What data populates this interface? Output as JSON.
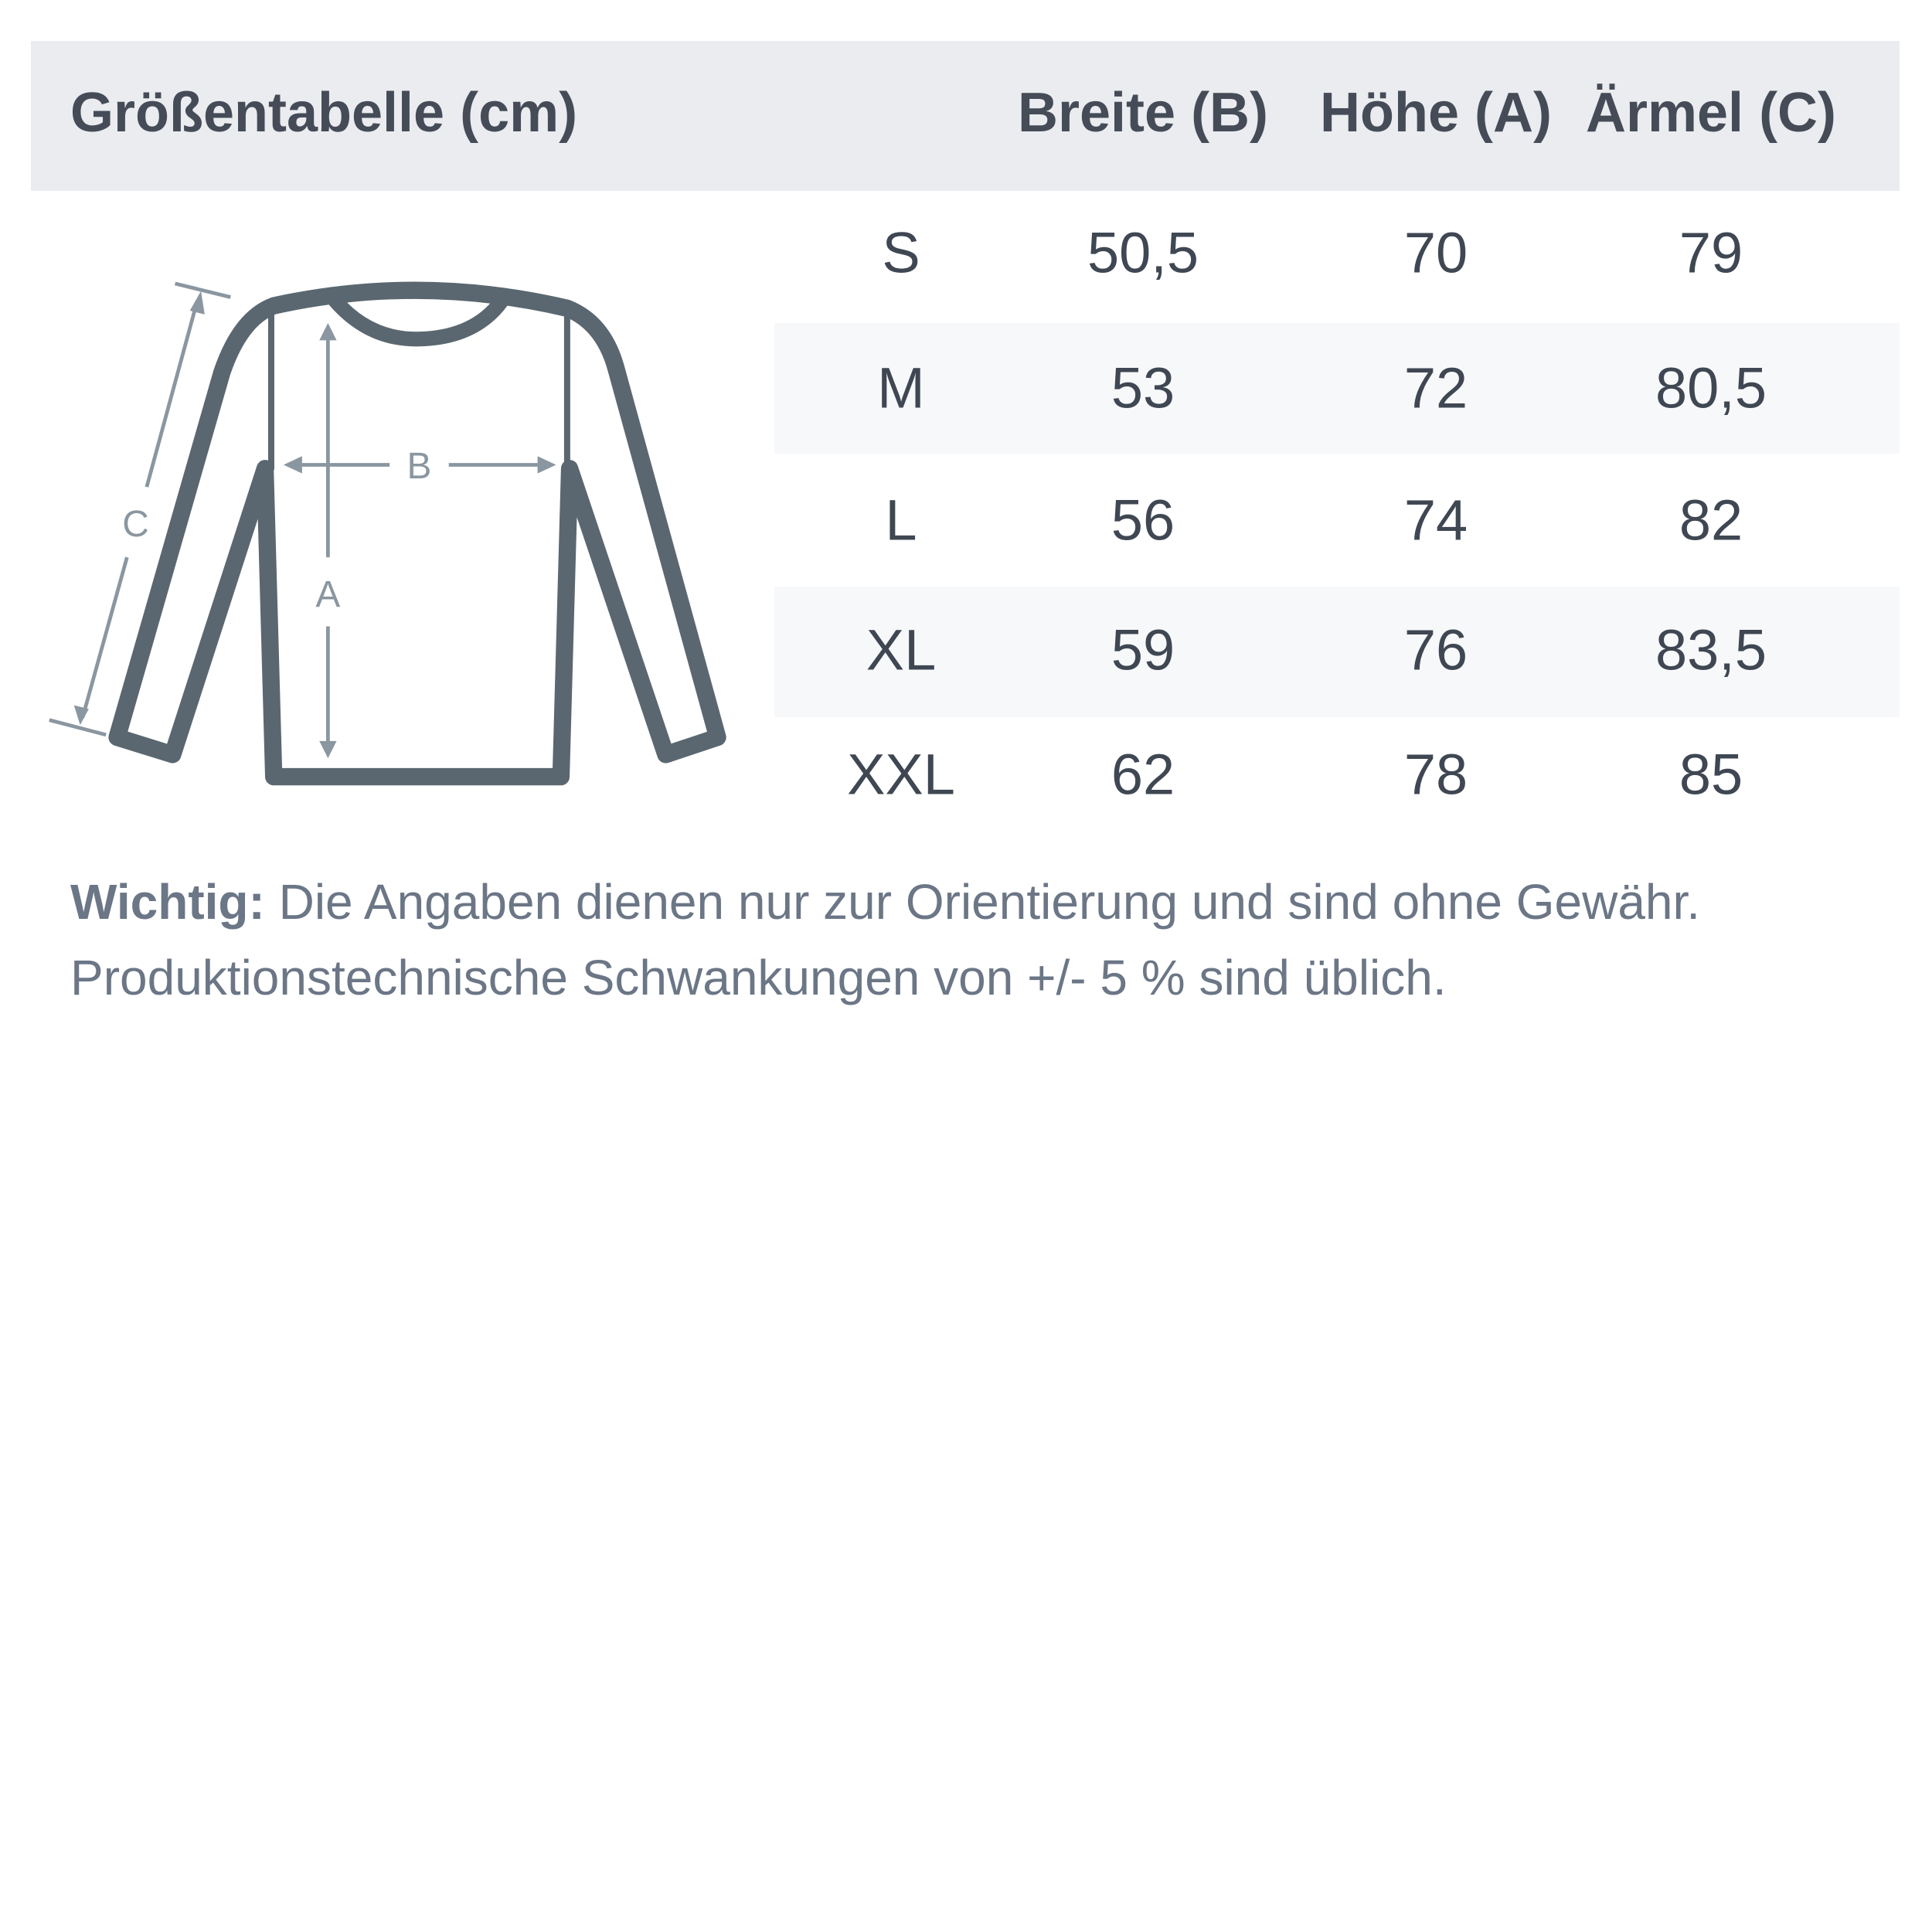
{
  "title": "Größentabelle (cm)",
  "columns": [
    "Breite (B)",
    "Höhe (A)",
    "Ärmel (C)"
  ],
  "rows": [
    {
      "size": "S",
      "values": [
        "50,5",
        "70",
        "79"
      ]
    },
    {
      "size": "M",
      "values": [
        "53",
        "72",
        "80,5"
      ]
    },
    {
      "size": "L",
      "values": [
        "56",
        "74",
        "82"
      ]
    },
    {
      "size": "XL",
      "values": [
        "59",
        "76",
        "83,5"
      ]
    },
    {
      "size": "XXL",
      "values": [
        "62",
        "78",
        "85"
      ]
    }
  ],
  "diagram": {
    "label_a": "A",
    "label_b": "B",
    "label_c": "C"
  },
  "note": {
    "bold": "Wichtig:",
    "line1": " Die Angaben dienen nur zur Orientierung und sind ohne Gewähr.",
    "line2": "Produktionstechnische Schwankungen von +/- 5 % sind üblich."
  },
  "colors": {
    "header_bg": "#eaecef",
    "outline": "#5a6770",
    "measure": "#8a96a0",
    "text": "#3f4753"
  }
}
